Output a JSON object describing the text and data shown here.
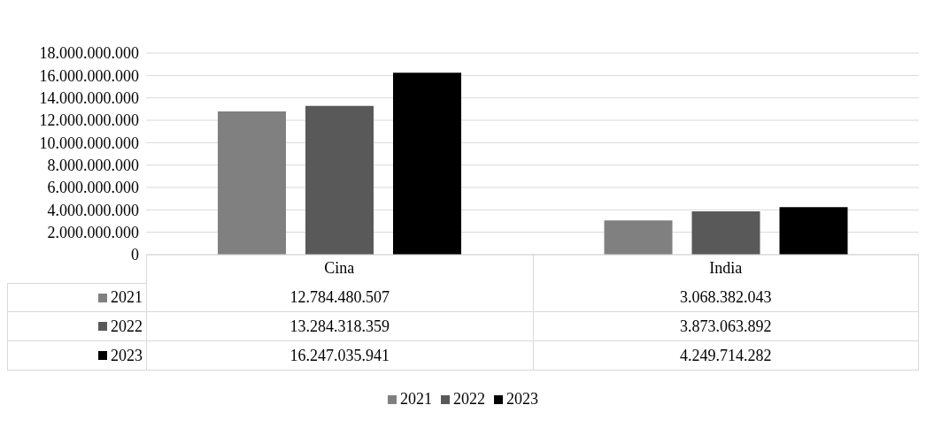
{
  "chart_data": {
    "type": "bar",
    "categories": [
      "Cina",
      "India"
    ],
    "series": [
      {
        "name": "2021",
        "color": "#808080",
        "values": [
          12784480507,
          3068382043
        ],
        "value_labels": [
          "12.784.480.507",
          "3.068.382.043"
        ]
      },
      {
        "name": "2022",
        "color": "#595959",
        "values": [
          13284318359,
          3873063892
        ],
        "value_labels": [
          "13.284.318.359",
          "3.873.063.892"
        ]
      },
      {
        "name": "2023",
        "color": "#000000",
        "values": [
          16247035941,
          4249714282
        ],
        "value_labels": [
          "16.247.035.941",
          "4.249.714.282"
        ]
      }
    ],
    "ylim": [
      0,
      18000000000
    ],
    "yticks": [
      {
        "value": 0,
        "label": "0"
      },
      {
        "value": 2000000000,
        "label": "2.000.000.000"
      },
      {
        "value": 4000000000,
        "label": "4.000.000.000"
      },
      {
        "value": 6000000000,
        "label": "6.000.000.000"
      },
      {
        "value": 8000000000,
        "label": "8.000.000.000"
      },
      {
        "value": 10000000000,
        "label": "10.000.000.000"
      },
      {
        "value": 12000000000,
        "label": "12.000.000.000"
      },
      {
        "value": 14000000000,
        "label": "14.000.000.000"
      },
      {
        "value": 16000000000,
        "label": "16.000.000.000"
      },
      {
        "value": 18000000000,
        "label": "18.000.000.000"
      }
    ],
    "grid": "y",
    "legend": "bottom"
  }
}
